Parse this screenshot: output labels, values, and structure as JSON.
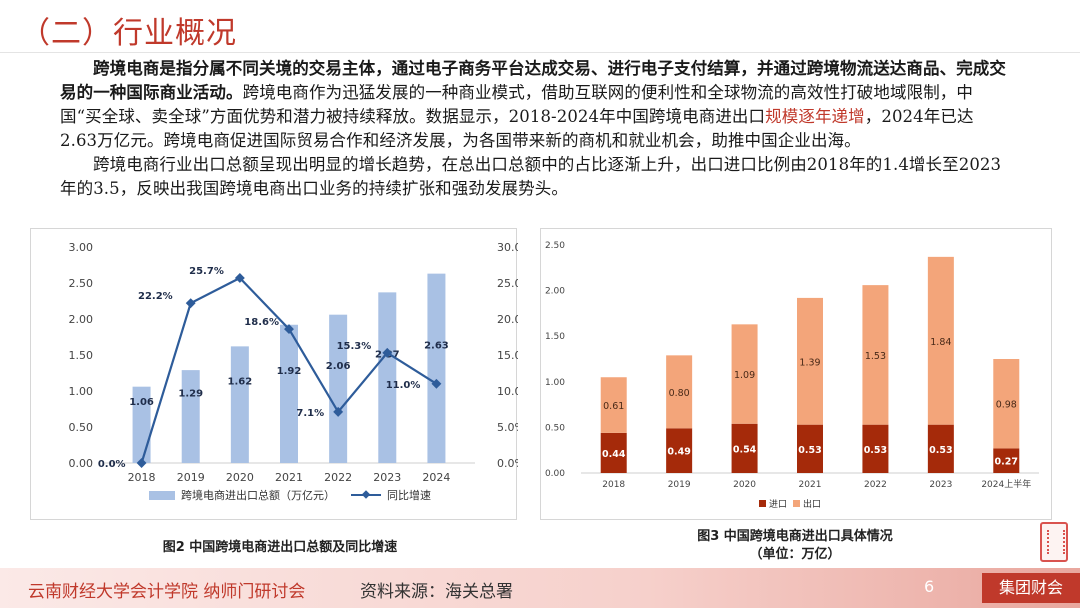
{
  "header": {
    "title": "（二）行业概况"
  },
  "body": {
    "p1_bold": "跨境电商是指分属不同关境的交易主体，通过电子商务平台达成交易、进行电子支付结算，并通过跨境物流送达商品、完成交易的一种国际商业活动。",
    "p1_rest_a": "跨境电商作为迅猛发展的一种商业模式，借助互联网的便利性和全球物流的高效性打破地域限制，中国“买全球、卖全球”方面优势和潜力被持续释放。数据显示，2018-2024年中国跨境电商进出口",
    "p1_red": "规模逐年递增",
    "p1_rest_b": "，2024年已达2.63万亿元。跨境电商促进国际贸易合作和经济发展，为各国带来新的商机和就业机会，助推中国企业出海。",
    "p2": "跨境电商行业出口总额呈现出明显的增长趋势，在总出口总额中的占比逐渐上升，出口进口比例由2018年的1.4增长至2023年的3.5，反映出我国跨境电商出口业务的持续扩张和强劲发展势头。"
  },
  "captions": {
    "fig2": "图2 中国跨境电商进出口总额及同比增速",
    "fig3_line1": "图3 中国跨境电商进出口具体情况",
    "fig3_line2": "（单位：万亿）"
  },
  "footer": {
    "org": "云南财经大学会计学院 纳师门研讨会",
    "source": "资料来源：海关总署",
    "page": "6",
    "watermark": "集团财会"
  },
  "colors": {
    "accent": "#c0392b",
    "bar_blue": "#a9c1e4",
    "line_blue": "#2e5c9a",
    "import": "#a52a0a",
    "export": "#f3a57a"
  },
  "chart_data": [
    {
      "type": "bar+line",
      "categories": [
        "2018",
        "2019",
        "2020",
        "2021",
        "2022",
        "2023",
        "2024"
      ],
      "series": [
        {
          "name": "跨境电商进出口总额（万亿元）",
          "type": "bar",
          "axis": "left",
          "values": [
            1.06,
            1.29,
            1.62,
            1.92,
            2.06,
            2.37,
            2.63
          ],
          "labels": [
            "1.06",
            "1.29",
            "1.62",
            "1.92",
            "2.06",
            "2.37",
            "2.63"
          ]
        },
        {
          "name": "同比增速",
          "type": "line",
          "axis": "right",
          "values": [
            0.0,
            22.2,
            25.7,
            18.6,
            7.1,
            15.3,
            11.0
          ],
          "labels": [
            "0.0%",
            "22.2%",
            "25.7%",
            "18.6%",
            "7.1%",
            "15.3%",
            "11.0%"
          ]
        }
      ],
      "left_ticks": [
        "0.00",
        "0.50",
        "1.00",
        "1.50",
        "2.00",
        "2.50",
        "3.00"
      ],
      "right_ticks": [
        "0.0%",
        "5.0%",
        "10.0%",
        "15.0%",
        "20.0%",
        "25.0%",
        "30.0%"
      ],
      "ylim_left": [
        0,
        3
      ],
      "ylim_right": [
        0,
        30
      ],
      "legend": "bottom"
    },
    {
      "type": "stacked-bar",
      "categories": [
        "2018",
        "2019",
        "2020",
        "2021",
        "2022",
        "2023",
        "2024上半年"
      ],
      "series": [
        {
          "name": "进口",
          "values": [
            0.44,
            0.49,
            0.54,
            0.53,
            0.53,
            0.53,
            0.27
          ],
          "labels": [
            "0.44",
            "0.49",
            "0.54",
            "0.53",
            "0.53",
            "0.53",
            "0.27"
          ]
        },
        {
          "name": "出口",
          "values": [
            0.61,
            0.8,
            1.09,
            1.39,
            1.53,
            1.84,
            0.98
          ],
          "labels": [
            "0.61",
            "0.80",
            "1.09",
            "1.39",
            "1.53",
            "1.84",
            "0.98"
          ]
        }
      ],
      "left_ticks": [
        "0.00",
        "0.50",
        "1.00",
        "1.50",
        "2.00",
        "2.50"
      ],
      "ylim": [
        0,
        2.5
      ],
      "legend": "bottom"
    }
  ]
}
